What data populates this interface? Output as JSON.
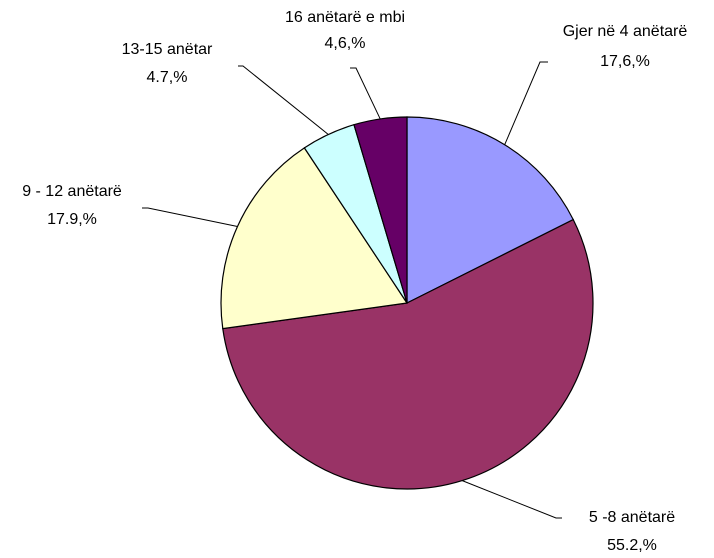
{
  "chart_data": {
    "type": "pie",
    "categories": [
      "Gjer në 4 anëtarë",
      "5 -8 anëtarë",
      "9 - 12 anëtarë",
      "13-15 anëtar",
      "16 anëtarë e mbi"
    ],
    "values": [
      17.6,
      55.2,
      17.9,
      4.7,
      4.6
    ],
    "value_labels": [
      "17,6,%",
      "55.2,%",
      "17.9,%",
      "4.7,%",
      "4,6,%"
    ],
    "colors": [
      "#9999ff",
      "#993366",
      "#ffffcc",
      "#ccffff",
      "#660066"
    ]
  }
}
